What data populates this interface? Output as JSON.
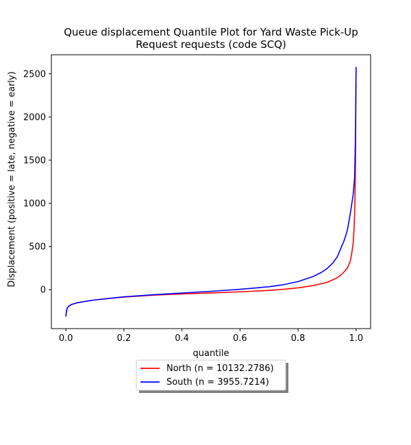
{
  "chart_data": {
    "type": "line",
    "title_lines": [
      "Queue displacement Quantile Plot for Yard Waste Pick-Up",
      "Request  requests (code SCQ)"
    ],
    "xlabel": "quantile",
    "ylabel": "Displacement (positive = late, negative = early)",
    "xlim": [
      -0.05,
      1.05
    ],
    "ylim": [
      -450,
      2720
    ],
    "xticks": [
      {
        "value": 0.0,
        "label": "0.0"
      },
      {
        "value": 0.2,
        "label": "0.2"
      },
      {
        "value": 0.4,
        "label": "0.4"
      },
      {
        "value": 0.6,
        "label": "0.6"
      },
      {
        "value": 0.8,
        "label": "0.8"
      },
      {
        "value": 1.0,
        "label": "1.0"
      }
    ],
    "yticks": [
      {
        "value": 0,
        "label": "0"
      },
      {
        "value": 500,
        "label": "500"
      },
      {
        "value": 1000,
        "label": "1000"
      },
      {
        "value": 1500,
        "label": "1500"
      },
      {
        "value": 2000,
        "label": "2000"
      },
      {
        "value": 2500,
        "label": "2500"
      }
    ],
    "grid": false,
    "legend_position": "below",
    "series": [
      {
        "name": "North (n = 10132.2786)",
        "color": "#ff0000",
        "points": [
          [
            0.0,
            -310
          ],
          [
            0.002,
            -250
          ],
          [
            0.005,
            -210
          ],
          [
            0.01,
            -190
          ],
          [
            0.02,
            -170
          ],
          [
            0.04,
            -150
          ],
          [
            0.07,
            -133
          ],
          [
            0.1,
            -118
          ],
          [
            0.15,
            -100
          ],
          [
            0.2,
            -85
          ],
          [
            0.3,
            -63
          ],
          [
            0.4,
            -48
          ],
          [
            0.5,
            -37
          ],
          [
            0.6,
            -24
          ],
          [
            0.7,
            -8
          ],
          [
            0.75,
            5
          ],
          [
            0.8,
            22
          ],
          [
            0.85,
            47
          ],
          [
            0.9,
            85
          ],
          [
            0.93,
            130
          ],
          [
            0.95,
            175
          ],
          [
            0.97,
            250
          ],
          [
            0.98,
            330
          ],
          [
            0.985,
            420
          ],
          [
            0.99,
            540
          ],
          [
            0.993,
            700
          ],
          [
            0.996,
            1000
          ],
          [
            0.998,
            1500
          ],
          [
            0.999,
            2000
          ],
          [
            1.0,
            2560
          ]
        ]
      },
      {
        "name": "South (n = 3955.7214)",
        "color": "#0000ff",
        "points": [
          [
            0.0,
            -310
          ],
          [
            0.002,
            -250
          ],
          [
            0.005,
            -210
          ],
          [
            0.01,
            -190
          ],
          [
            0.02,
            -170
          ],
          [
            0.04,
            -150
          ],
          [
            0.07,
            -133
          ],
          [
            0.1,
            -118
          ],
          [
            0.15,
            -100
          ],
          [
            0.2,
            -82
          ],
          [
            0.3,
            -58
          ],
          [
            0.4,
            -38
          ],
          [
            0.5,
            -18
          ],
          [
            0.6,
            5
          ],
          [
            0.7,
            35
          ],
          [
            0.75,
            58
          ],
          [
            0.8,
            95
          ],
          [
            0.85,
            150
          ],
          [
            0.88,
            200
          ],
          [
            0.9,
            245
          ],
          [
            0.92,
            310
          ],
          [
            0.935,
            380
          ],
          [
            0.95,
            500
          ],
          [
            0.96,
            580
          ],
          [
            0.97,
            690
          ],
          [
            0.98,
            880
          ],
          [
            0.99,
            1100
          ],
          [
            0.995,
            1300
          ],
          [
            0.998,
            1800
          ],
          [
            1.0,
            2580
          ]
        ]
      }
    ]
  }
}
